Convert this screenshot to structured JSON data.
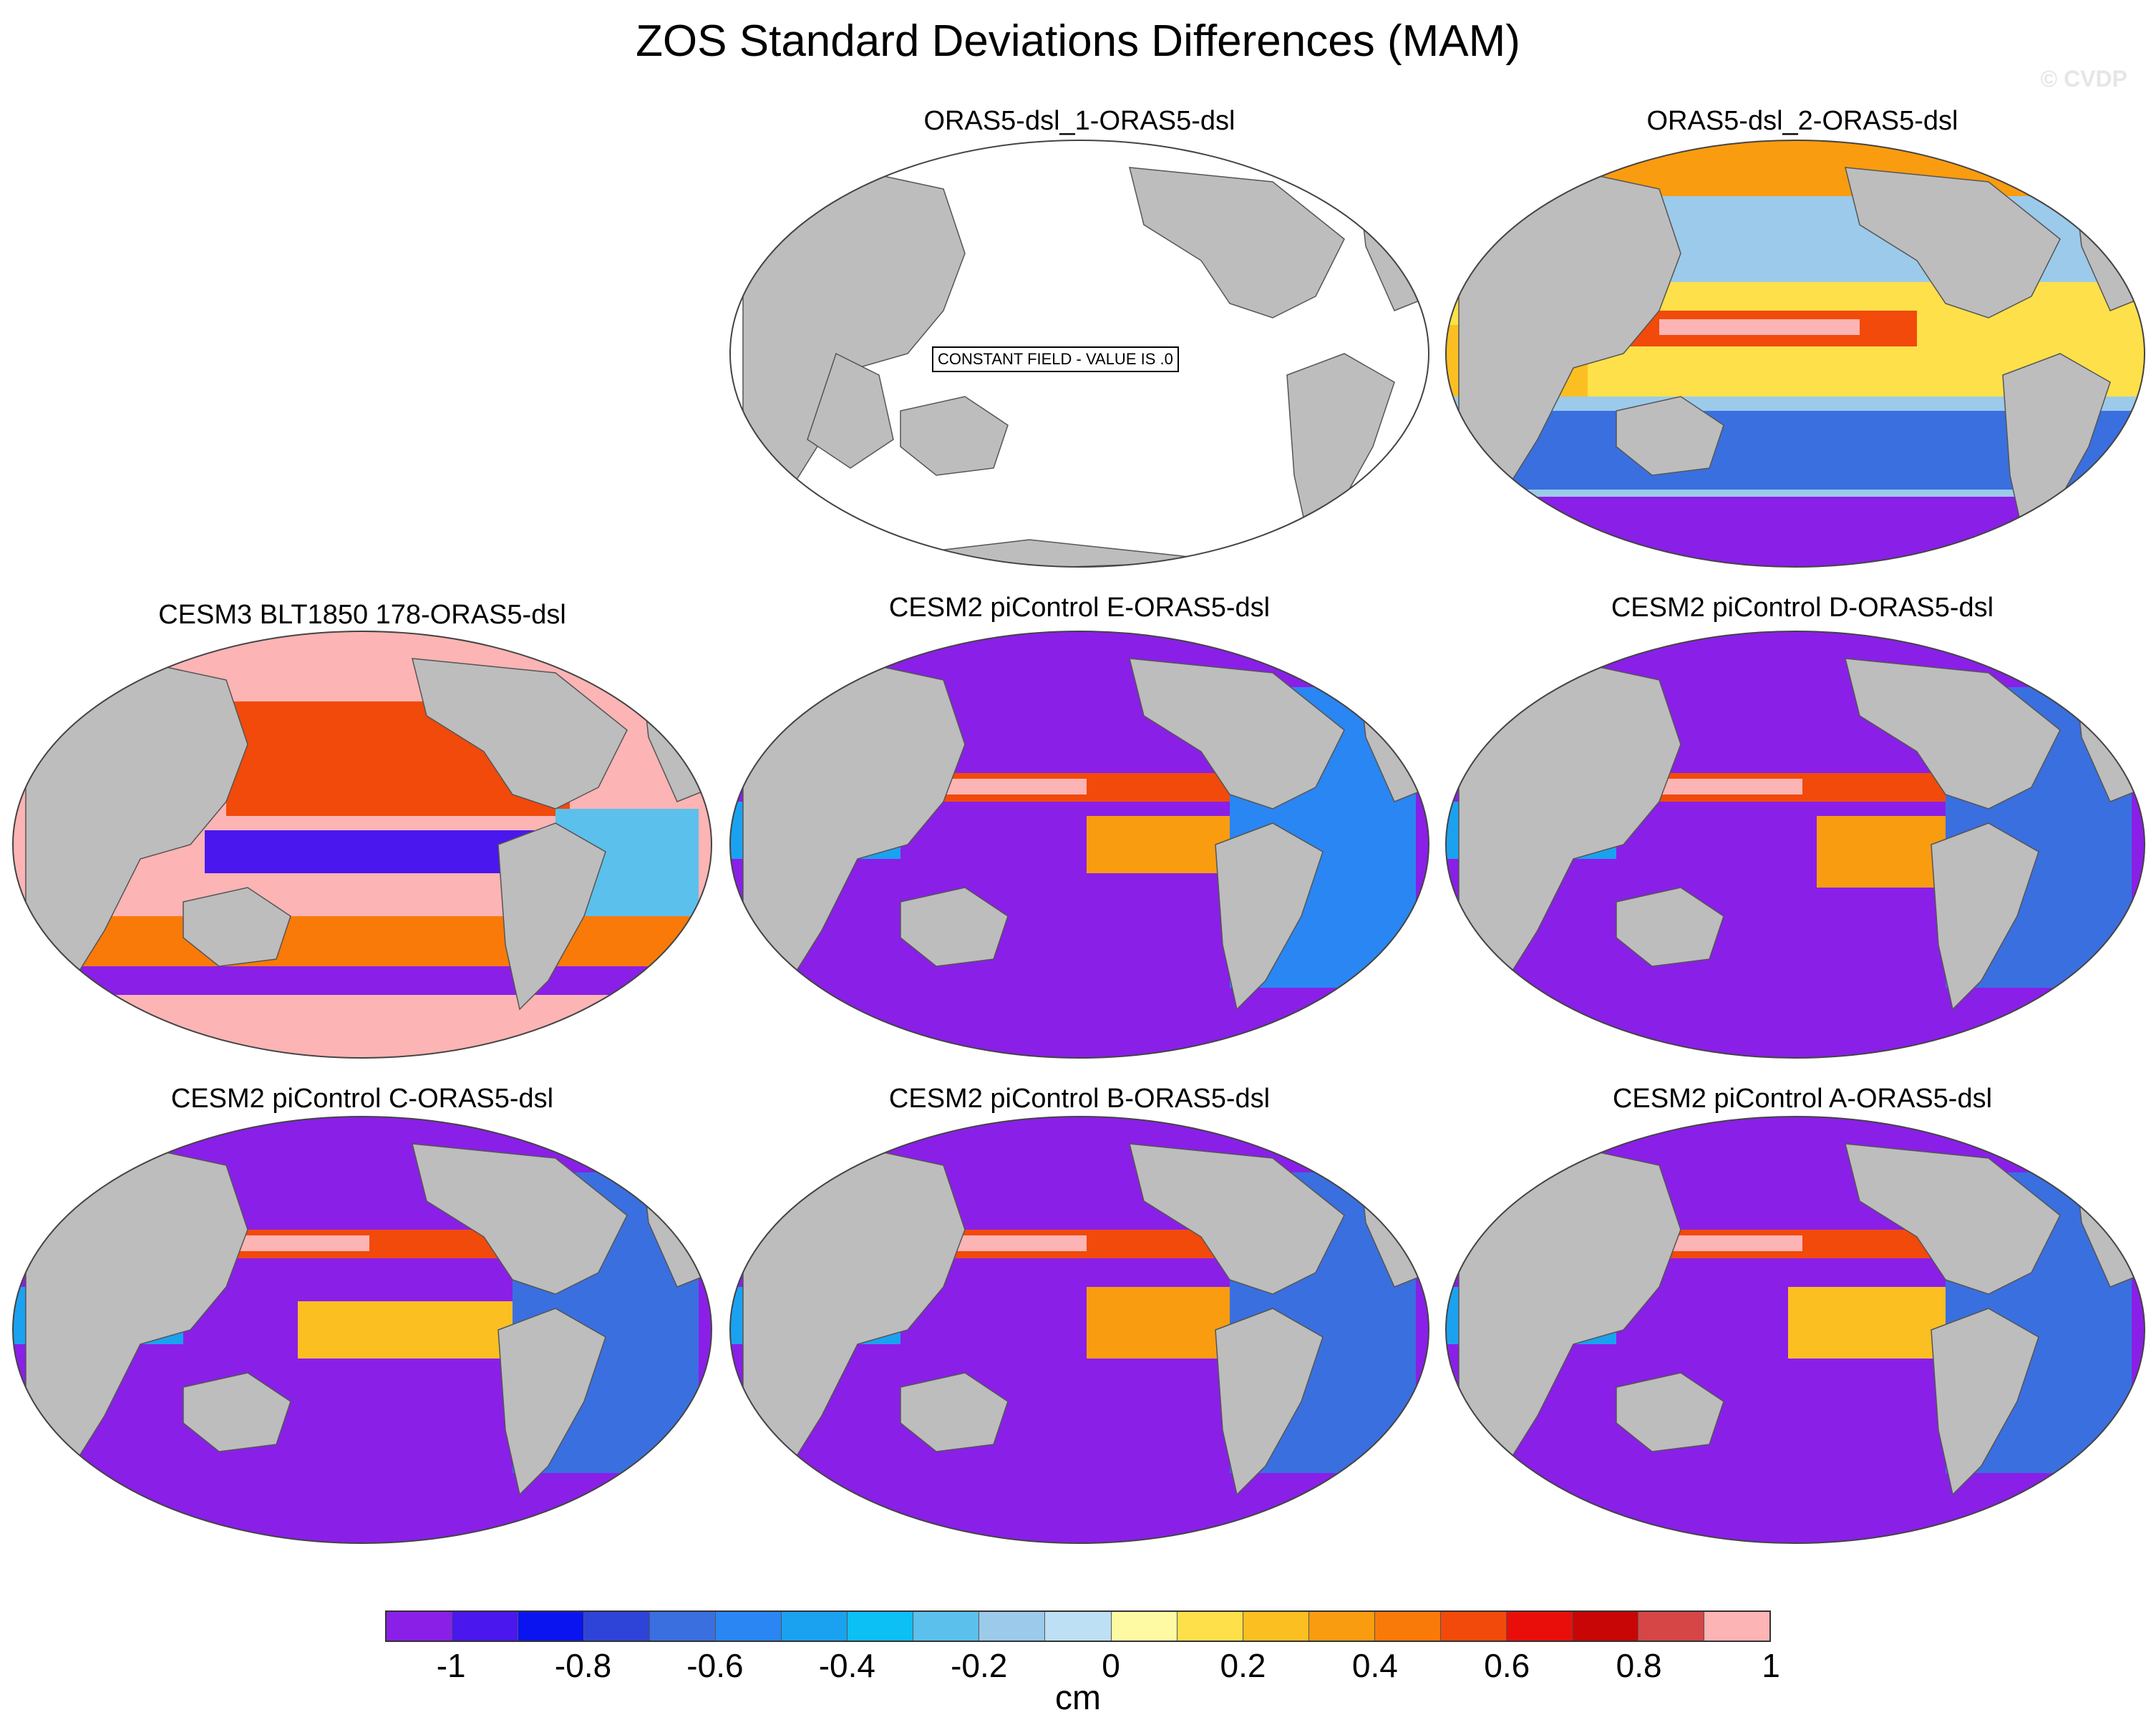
{
  "title": "ZOS Standard Deviations Differences (MAM)",
  "watermark": "© CVDP",
  "panels": [
    {
      "title": "ORAS5-dsl_1-ORAS5-dsl",
      "note": "CONSTANT FIELD - VALUE IS .0"
    },
    {
      "title": "ORAS5-dsl_2-ORAS5-dsl"
    },
    {
      "title": "CESM3 BLT1850 178-ORAS5-dsl"
    },
    {
      "title": "CESM2 piControl E-ORAS5-dsl"
    },
    {
      "title": "CESM2 piControl D-ORAS5-dsl"
    },
    {
      "title": "CESM2 piControl C-ORAS5-dsl"
    },
    {
      "title": "CESM2 piControl B-ORAS5-dsl"
    },
    {
      "title": "CESM2 piControl A-ORAS5-dsl"
    }
  ],
  "colorbar": {
    "colors": [
      "#8a1fe8",
      "#4a17ee",
      "#0a14f0",
      "#2e44d8",
      "#3a6fe0",
      "#2a86f2",
      "#1aa2f0",
      "#0cc0f5",
      "#5cc0ec",
      "#9ccaea",
      "#bde0f5",
      "#fefaa4",
      "#fde04a",
      "#fbbf22",
      "#fa9c10",
      "#f97a08",
      "#f14a0a",
      "#ea0e0a",
      "#c80606",
      "#d64646",
      "#fcb4b4"
    ],
    "labels": [
      "-1",
      "-0.8",
      "-0.6",
      "-0.4",
      "-0.2",
      "0",
      "0.2",
      "0.4",
      "0.6",
      "0.8",
      "1"
    ],
    "units": "cm"
  }
}
